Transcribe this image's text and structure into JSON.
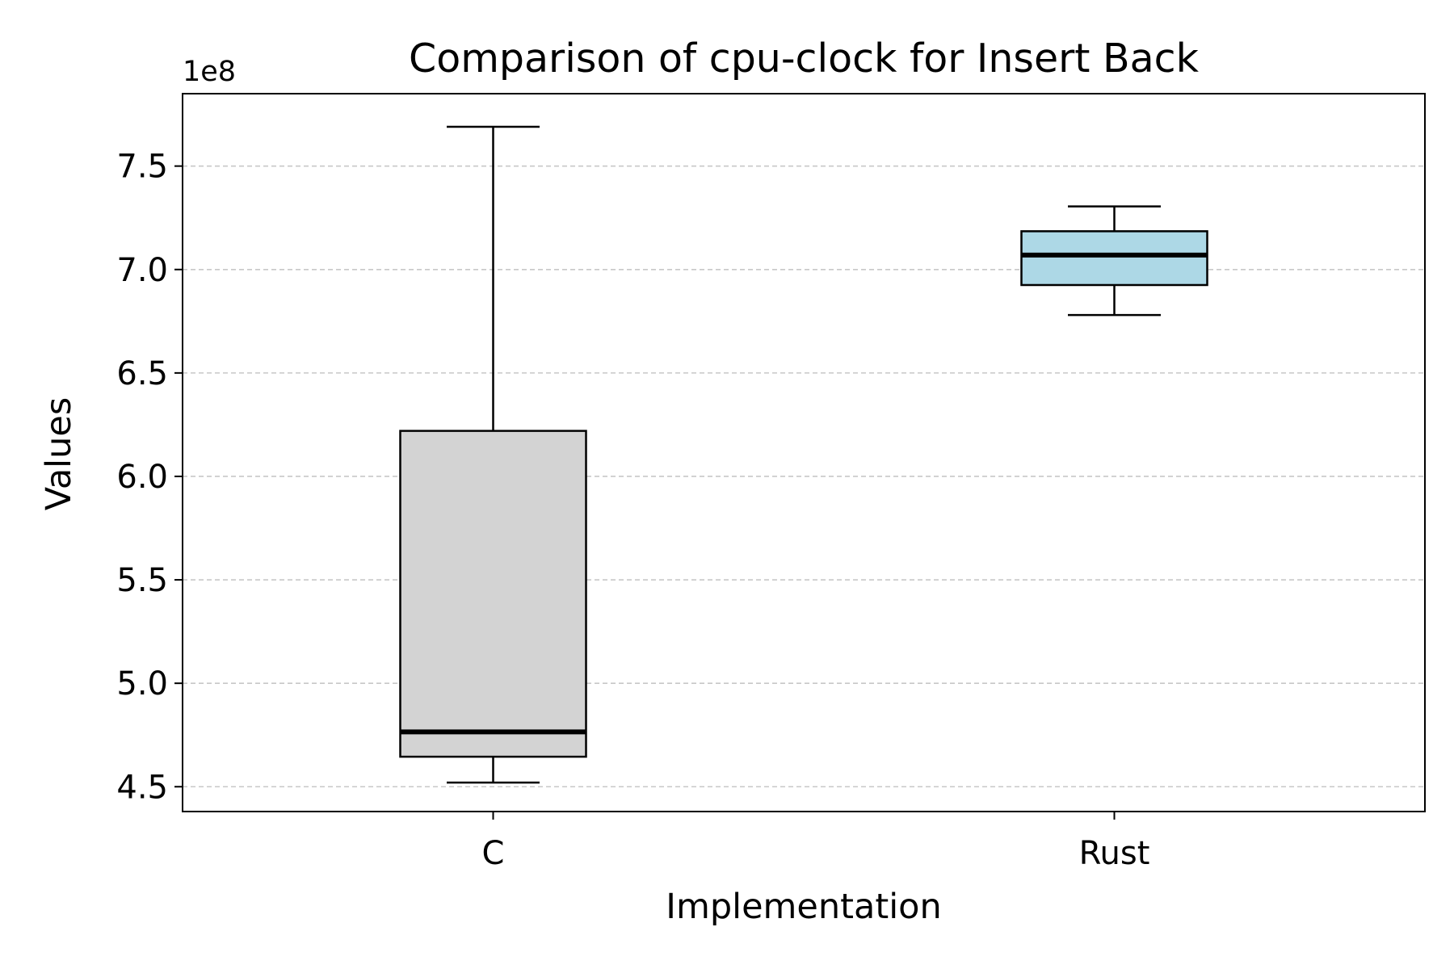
{
  "chart_data": {
    "type": "box",
    "title": "Comparison of cpu-clock for Insert Back",
    "xlabel": "Implementation",
    "ylabel": "Values",
    "offset_label": "1e8",
    "categories": [
      "C",
      "Rust"
    ],
    "boxes": [
      {
        "category": "C",
        "whisker_low": 452000000,
        "q1": 464500000,
        "median": 476500000,
        "q3": 622000000,
        "whisker_high": 769000000,
        "fill": "#d3d3d3"
      },
      {
        "category": "Rust",
        "whisker_low": 678000000,
        "q1": 692500000,
        "median": 707000000,
        "q3": 718500000,
        "whisker_high": 730500000,
        "fill": "#add8e6"
      }
    ],
    "ylim": [
      438000000,
      785000000
    ],
    "yticks": [
      450000000,
      500000000,
      550000000,
      600000000,
      650000000,
      700000000,
      750000000
    ],
    "ytick_labels": [
      "4.5",
      "5.0",
      "5.5",
      "6.0",
      "6.5",
      "7.0",
      "7.5"
    ],
    "grid": "y-dashed",
    "colors": {
      "grid": "#c8c8c8",
      "median": "#000000",
      "edge": "#000000"
    }
  }
}
